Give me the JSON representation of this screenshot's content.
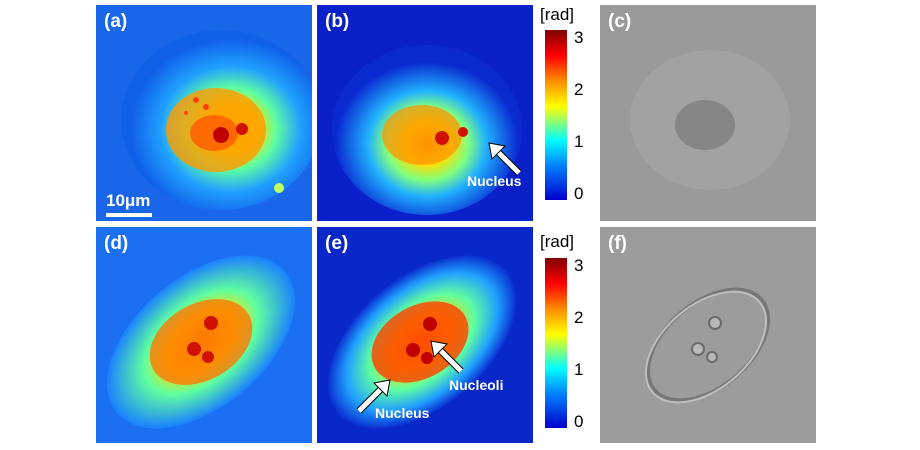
{
  "panels": {
    "a": {
      "label": "(a)",
      "scalebar": "10μm"
    },
    "b": {
      "label": "(b)",
      "annotation": "Nucleus"
    },
    "c": {
      "label": "(c)"
    },
    "d": {
      "label": "(d)"
    },
    "e": {
      "label": "(e)",
      "annotation_nucleus": "Nucleus",
      "annotation_nucleoli": "Nucleoli"
    },
    "f": {
      "label": "(f)"
    }
  },
  "colorbar": {
    "unit": "[rad]",
    "ticks": [
      "3",
      "2",
      "1",
      "0"
    ]
  }
}
